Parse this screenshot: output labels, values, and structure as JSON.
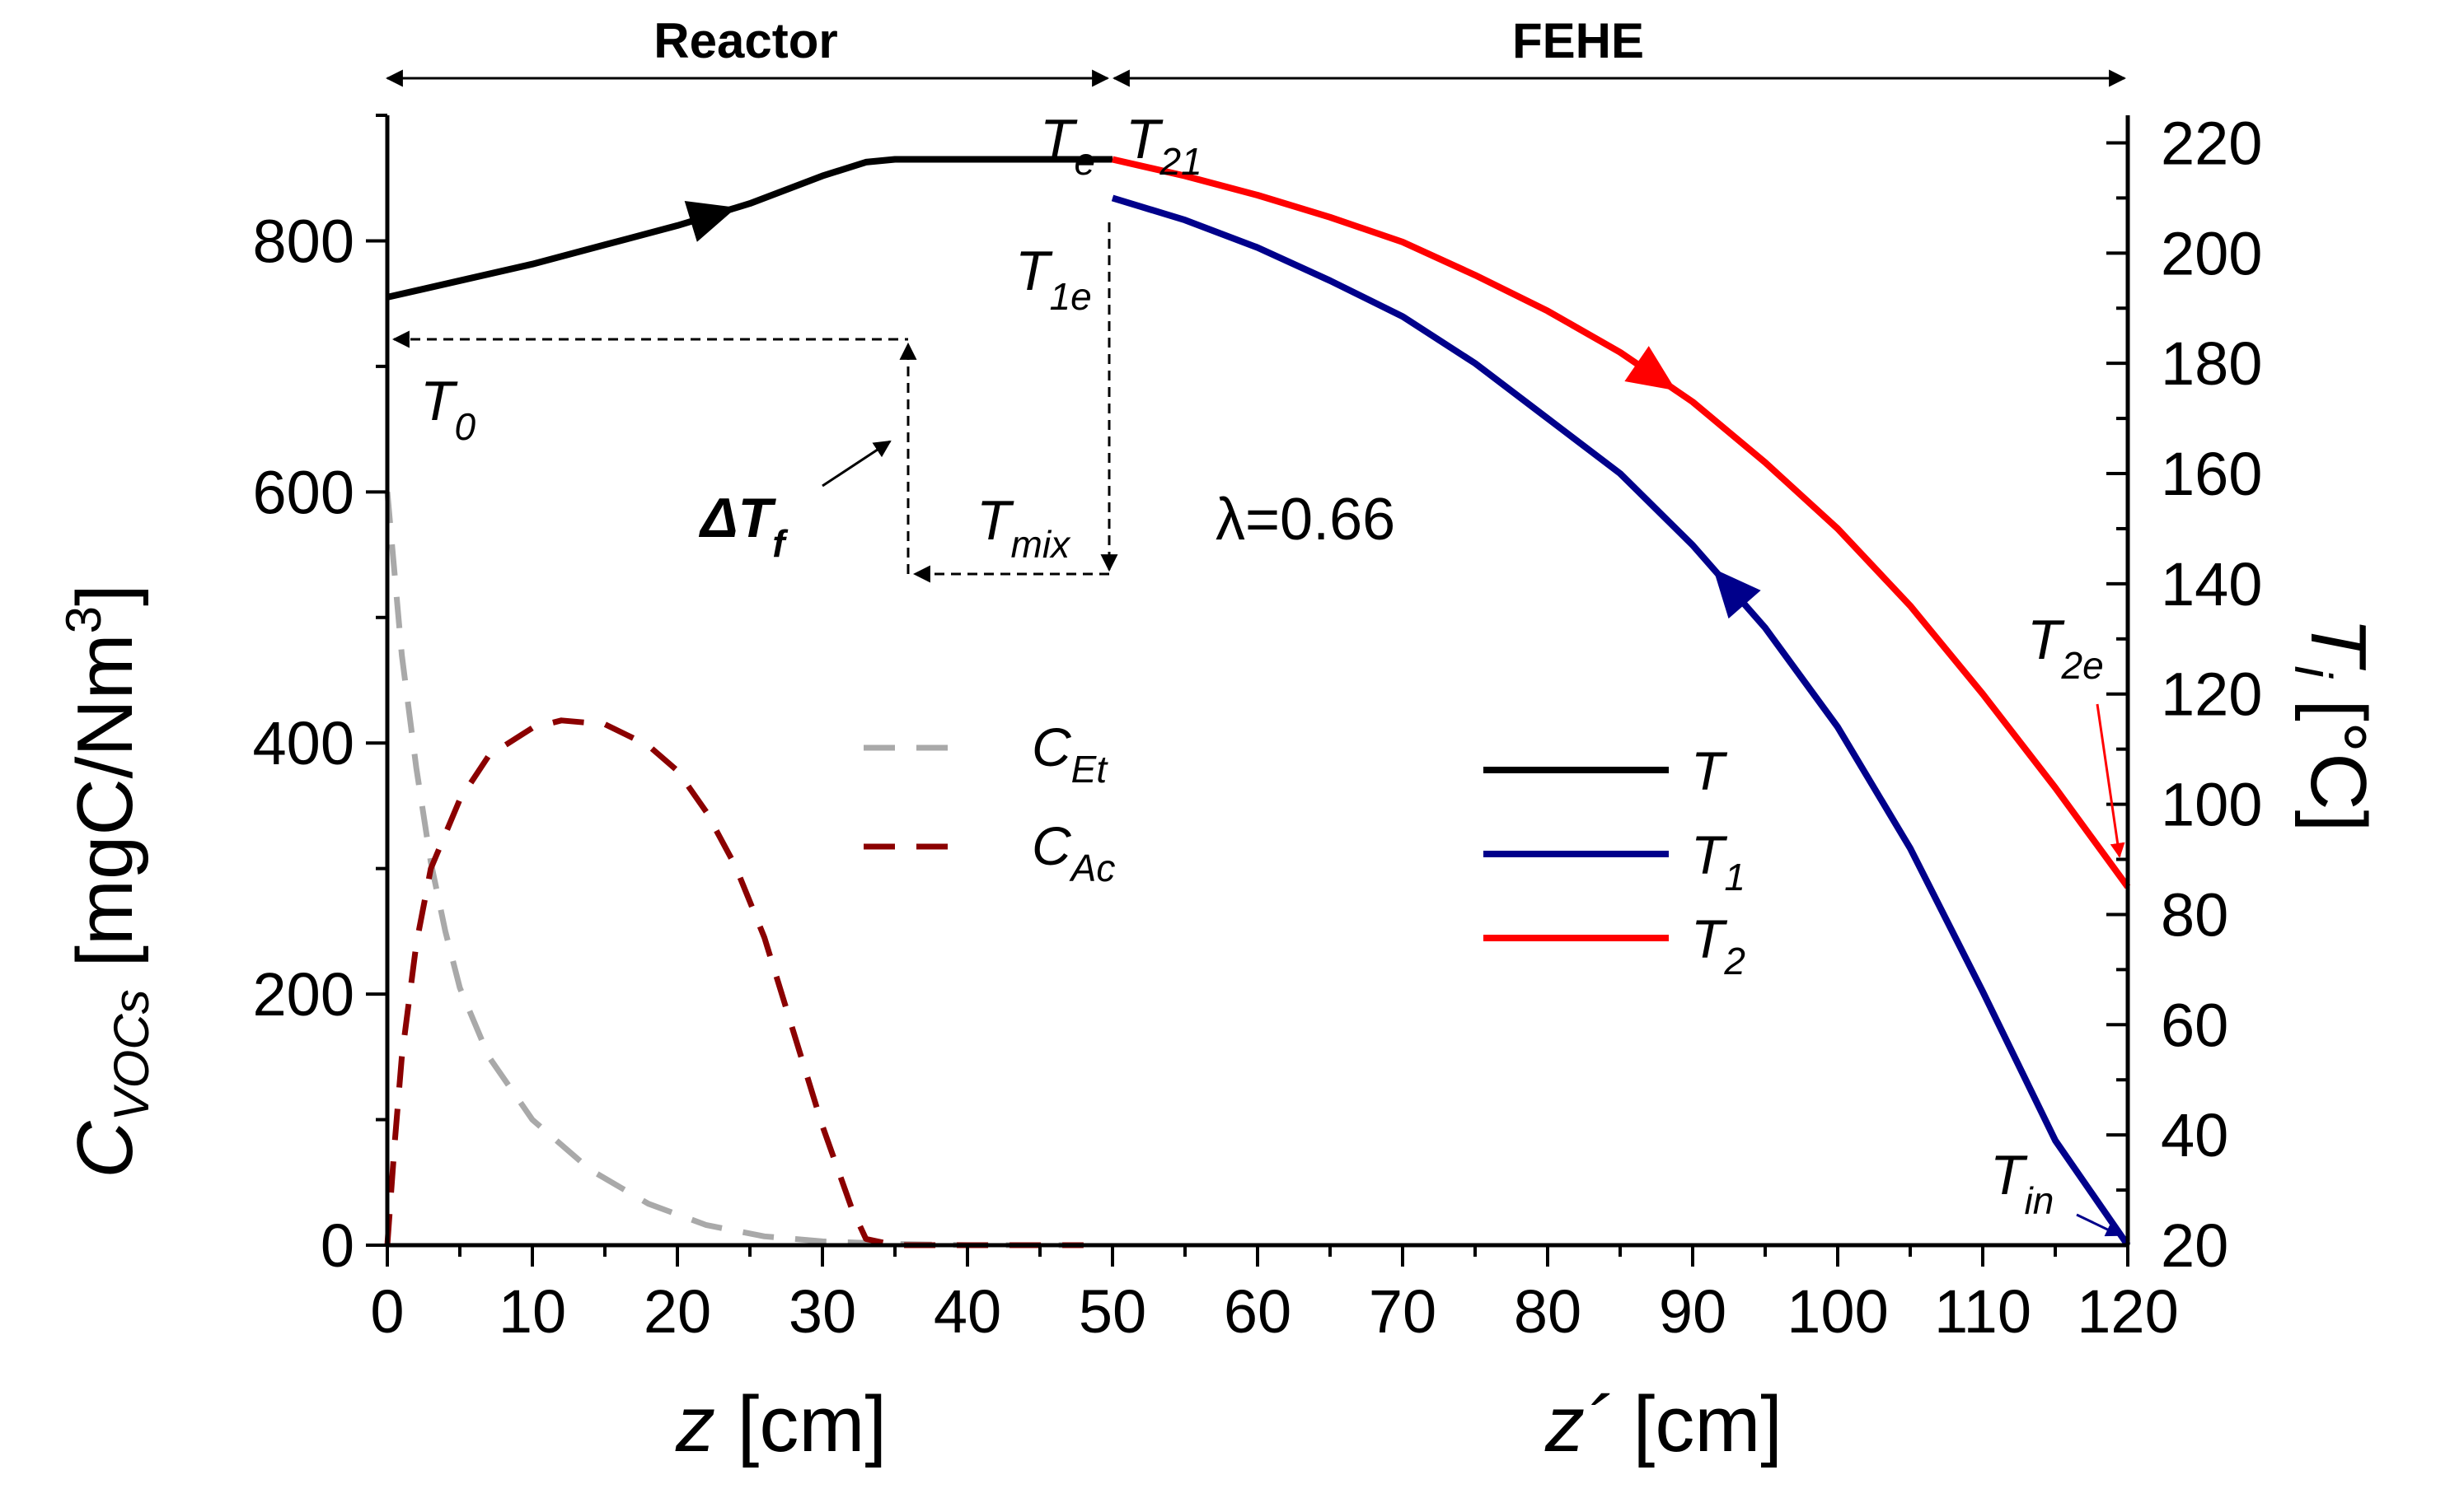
{
  "chart_data": {
    "type": "line",
    "regions": [
      {
        "label": "Reactor",
        "x_from": 0,
        "x_to": 50
      },
      {
        "label": "FEHE",
        "x_from": 50,
        "x_to": 120
      }
    ],
    "x_axis": {
      "range": [
        0,
        120
      ],
      "ticks": [
        0,
        10,
        20,
        30,
        40,
        50,
        60,
        70,
        80,
        90,
        100,
        110,
        120
      ],
      "minor_step": 5,
      "label_left_main": "z",
      "label_left_unit": " [cm]",
      "label_right_main": "z´",
      "label_right_unit": " [cm]"
    },
    "y_left": {
      "range": [
        0,
        900
      ],
      "ticks": [
        0,
        200,
        400,
        600,
        800
      ],
      "minor_step": 100,
      "label_main": "C",
      "label_sub": "VOCs",
      "label_unit": " [mgC/Nm",
      "label_sup": "3",
      "label_close": "]"
    },
    "y_right": {
      "range": [
        20,
        225
      ],
      "ticks": [
        20,
        40,
        60,
        80,
        100,
        120,
        140,
        160,
        180,
        200,
        220
      ],
      "minor_step": 10,
      "label_main": "T",
      "label_sub": "i",
      "label_unit": " [°C]"
    },
    "series": [
      {
        "name": "T",
        "legend_main": "T",
        "legend_sub": "",
        "color": "#000000",
        "axis": "right",
        "dash": false,
        "x": [
          0,
          5,
          10,
          15,
          20,
          25,
          30,
          33,
          35,
          40,
          45,
          50
        ],
        "y": [
          192,
          195,
          198,
          201.5,
          205,
          209,
          214,
          216.5,
          217,
          217,
          217,
          217
        ]
      },
      {
        "name": "T1",
        "legend_main": "T",
        "legend_sub": "1",
        "color": "#00008b",
        "axis": "right",
        "dash": false,
        "x": [
          50,
          55,
          60,
          65,
          70,
          75,
          80,
          85,
          90,
          95,
          100,
          105,
          110,
          115,
          120
        ],
        "y": [
          210,
          206,
          201,
          195,
          188.5,
          180,
          170,
          160,
          147,
          132,
          114,
          92,
          66,
          39,
          20
        ]
      },
      {
        "name": "T2",
        "legend_main": "T",
        "legend_sub": "2",
        "color": "#ff0000",
        "axis": "right",
        "dash": false,
        "x": [
          50,
          55,
          60,
          65,
          70,
          75,
          80,
          85,
          90,
          95,
          100,
          105,
          110,
          115,
          120
        ],
        "y": [
          217,
          214,
          210.5,
          206.5,
          202,
          196,
          189.5,
          182,
          173,
          162,
          150,
          136,
          120,
          103,
          85
        ]
      },
      {
        "name": "C_Et",
        "legend_main": "C",
        "legend_sub": "Et",
        "color": "#a9a9a9",
        "axis": "left",
        "dash": true,
        "x": [
          0,
          1,
          2,
          3,
          4,
          5,
          7,
          10,
          14,
          18,
          22,
          26,
          30,
          35,
          40,
          48
        ],
        "y": [
          600,
          470,
          380,
          305,
          250,
          205,
          150,
          100,
          60,
          33,
          16,
          7,
          3,
          1,
          0,
          0
        ]
      },
      {
        "name": "C_Ac",
        "legend_main": "C",
        "legend_sub": "Ac",
        "color": "#8b0000",
        "axis": "left",
        "dash": true,
        "x": [
          0,
          0.5,
          1,
          2,
          3,
          5,
          7,
          10,
          12,
          15,
          18,
          20,
          22,
          24,
          26,
          28,
          30,
          32,
          33,
          35,
          40,
          48
        ],
        "y": [
          0,
          80,
          150,
          240,
          300,
          355,
          390,
          412,
          418,
          415,
          398,
          378,
          345,
          302,
          245,
          170,
          95,
          30,
          5,
          0,
          0,
          0
        ]
      }
    ],
    "annotations": [
      {
        "main": "T",
        "sub": "e"
      },
      {
        "main": "T",
        "sub": "21"
      },
      {
        "main": "T",
        "sub": "1e"
      },
      {
        "main": "T",
        "sub": "0"
      },
      {
        "main": "ΔT",
        "sub": "f"
      },
      {
        "main": "T",
        "sub": "mix"
      },
      {
        "main": "T",
        "sub": "2e"
      },
      {
        "main": "T",
        "sub": "in"
      }
    ],
    "lambda_label": "λ=0.66"
  }
}
